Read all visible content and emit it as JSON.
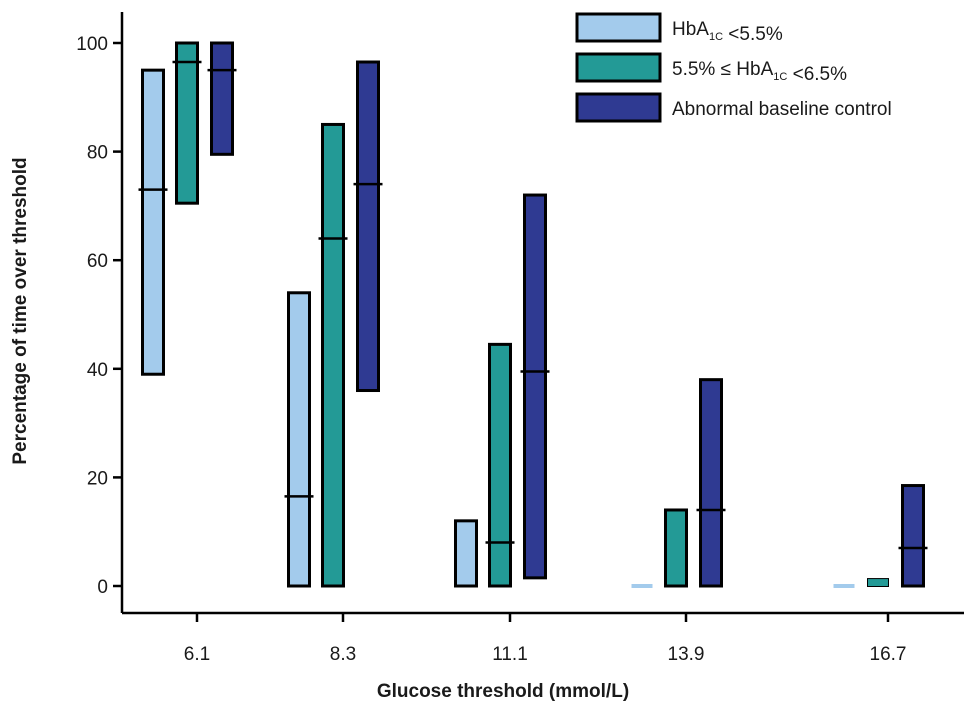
{
  "chart_data": {
    "type": "box",
    "xlabel": "Glucose threshold (mmol/L)",
    "ylabel": "Percentage of time over threshold",
    "categories": [
      "6.1",
      "8.3",
      "11.1",
      "13.9",
      "16.7"
    ],
    "ylim": [
      0,
      100
    ],
    "yticks": [
      0,
      20,
      40,
      60,
      80,
      100
    ],
    "grid": false,
    "legend_position": "top-right",
    "series": [
      {
        "name_parts": [
          {
            "text": "HbA",
            "style": "normal"
          },
          {
            "text": "1C",
            "style": "sub"
          },
          {
            "text": " <5.5%",
            "style": "normal"
          }
        ],
        "color": "#a3cbec",
        "boxes": [
          {
            "low": 39,
            "median": 73,
            "high": 95
          },
          {
            "low": 0,
            "median": 16.5,
            "high": 54
          },
          {
            "low": 0,
            "median": null,
            "high": 12
          },
          {
            "low": 0,
            "median": 0,
            "high": 0
          },
          {
            "low": 0,
            "median": 0,
            "high": 0
          }
        ]
      },
      {
        "name_parts": [
          {
            "text": "5.5% ≤ HbA",
            "style": "normal"
          },
          {
            "text": "1C",
            "style": "sub"
          },
          {
            "text": " <6.5%",
            "style": "normal"
          }
        ],
        "color": "#239a96",
        "boxes": [
          {
            "low": 70.5,
            "median": 96.5,
            "high": 100
          },
          {
            "low": 0,
            "median": 64,
            "high": 85
          },
          {
            "low": 0,
            "median": 8,
            "high": 44.5
          },
          {
            "low": 0,
            "median": null,
            "high": 14
          },
          {
            "low": 0,
            "median": 0.5,
            "high": 1
          }
        ]
      },
      {
        "name": "Abnormal baseline control",
        "color": "#2f3a92",
        "boxes": [
          {
            "low": 79.5,
            "median": 95,
            "high": 100
          },
          {
            "low": 36,
            "median": 74,
            "high": 96.5
          },
          {
            "low": 1.5,
            "median": 39.5,
            "high": 72
          },
          {
            "low": 0,
            "median": 14,
            "high": 38
          },
          {
            "low": 0,
            "median": 7,
            "high": 18.5
          }
        ]
      }
    ]
  }
}
